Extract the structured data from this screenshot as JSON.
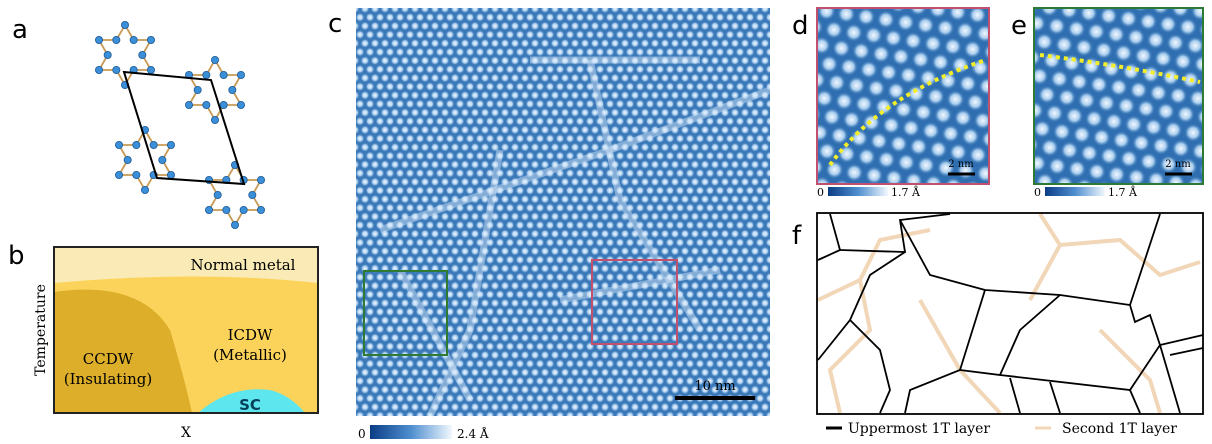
{
  "panels": {
    "a": {
      "label": "a"
    },
    "b": {
      "label": "b",
      "normal": "Normal metal",
      "ccdw": "CCDW",
      "ccdw_note": "(Insulating)",
      "icdw": "ICDW",
      "icdw_note": "(Metallic)",
      "sc": "SC",
      "y_axis": "Temperature",
      "x_axis": "X"
    },
    "c": {
      "label": "c",
      "scale_bar": "10 nm",
      "colorbar_min": "0",
      "colorbar_max": "2.4 Å"
    },
    "d": {
      "label": "d",
      "scale_bar": "2 nm",
      "colorbar_min": "0",
      "colorbar_max": "1.7 Å"
    },
    "e": {
      "label": "e",
      "scale_bar": "2 nm",
      "colorbar_min": "0",
      "colorbar_max": "1.7 Å"
    },
    "f": {
      "label": "f",
      "legend": [
        "Uppermost 1T layer",
        "Second 1T layer"
      ]
    }
  }
}
